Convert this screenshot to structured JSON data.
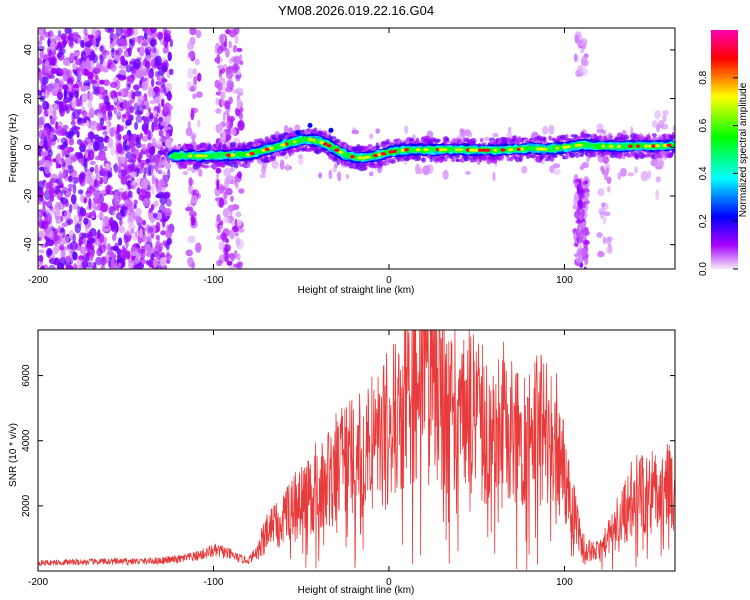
{
  "title": "YM08.2026.019.22.16.G04",
  "chart_data": [
    {
      "type": "heatmap",
      "title": "YM08.2026.019.22.16.G04",
      "xlabel": "Height of straight line (km)",
      "ylabel": "Frequency (Hz)",
      "xlim": [
        -200,
        163
      ],
      "ylim": [
        -50,
        49
      ],
      "xticks": [
        -200,
        -100,
        0,
        100
      ],
      "xtick_labels": [
        "-200",
        "-100",
        "0",
        "100"
      ],
      "yticks": [
        40,
        20,
        0,
        -20,
        -40
      ],
      "ytick_labels": [
        "40",
        "20",
        "0",
        "-20",
        "-40"
      ],
      "colorbar": {
        "label": "Normalized spectral amplitude",
        "range": [
          0,
          1
        ],
        "ticks": [
          0.0,
          0.2,
          0.4,
          0.6,
          0.8
        ],
        "tick_labels": [
          "0.0",
          "0.2",
          "0.4",
          "0.6",
          "0.8"
        ],
        "colors": [
          "#f4eaf8",
          "#a800ff",
          "#0000ff",
          "#00ffff",
          "#00ff00",
          "#ffff00",
          "#ff0000",
          "#ff00b0"
        ]
      },
      "ridge": {
        "x": [
          -122,
          -110,
          -100,
          -90,
          -80,
          -70,
          -60,
          -50,
          -45,
          -40,
          -35,
          -30,
          -25,
          -20,
          -15,
          -10,
          -5,
          0,
          10,
          20,
          30,
          40,
          50,
          60,
          70,
          80,
          90,
          100,
          105,
          110,
          120,
          130,
          140,
          150,
          160
        ],
        "y": [
          -3.5,
          -3.5,
          -3.5,
          -3.2,
          -3.0,
          -1.0,
          1.0,
          3.0,
          3.2,
          2.5,
          1.0,
          -1.0,
          -3.0,
          -4.0,
          -4.5,
          -3.8,
          -3.0,
          -2.0,
          -1.0,
          -1.0,
          -1.0,
          -1.0,
          -1.2,
          -1.2,
          -1.0,
          -0.5,
          -0.8,
          0.0,
          0.5,
          1.0,
          0.5,
          0.3,
          0.5,
          0.5,
          0.8
        ]
      }
    },
    {
      "type": "line",
      "xlabel": "Height of straight line (km)",
      "ylabel": "SNR (10 * v/v)",
      "xlim": [
        -200,
        163
      ],
      "ylim": [
        0,
        7400
      ],
      "xticks": [
        -200,
        -100,
        0,
        100
      ],
      "xtick_labels": [
        "-200",
        "-100",
        "0",
        "100"
      ],
      "yticks": [
        2000,
        4000,
        6000
      ],
      "ytick_labels": [
        "2000",
        "4000",
        "6000"
      ],
      "series": [
        {
          "name": "SNR",
          "color": "#e83a3a",
          "x": [
            -200,
            -180,
            -160,
            -140,
            -130,
            -120,
            -110,
            -100,
            -95,
            -90,
            -85,
            -80,
            -75,
            -70,
            -65,
            -60,
            -55,
            -50,
            -45,
            -40,
            -35,
            -30,
            -25,
            -20,
            -15,
            -10,
            -5,
            0,
            5,
            10,
            15,
            20,
            25,
            30,
            35,
            40,
            45,
            50,
            55,
            60,
            65,
            70,
            75,
            80,
            85,
            90,
            95,
            100,
            105,
            110,
            115,
            120,
            125,
            130,
            135,
            140,
            145,
            150,
            155,
            160,
            163
          ],
          "y": [
            250,
            270,
            290,
            300,
            320,
            360,
            450,
            620,
            600,
            500,
            380,
            320,
            600,
            1200,
            1500,
            1700,
            1900,
            2100,
            2300,
            2400,
            2800,
            3000,
            3500,
            3400,
            3300,
            3700,
            4100,
            4200,
            4600,
            5200,
            5900,
            5700,
            5500,
            5400,
            5200,
            5100,
            4900,
            4700,
            4500,
            4200,
            4200,
            4400,
            4400,
            4200,
            4300,
            4300,
            3900,
            3000,
            1900,
            800,
            600,
            600,
            1000,
            1500,
            1900,
            2100,
            2400,
            2500,
            2200,
            2700,
            1900
          ]
        }
      ]
    }
  ]
}
